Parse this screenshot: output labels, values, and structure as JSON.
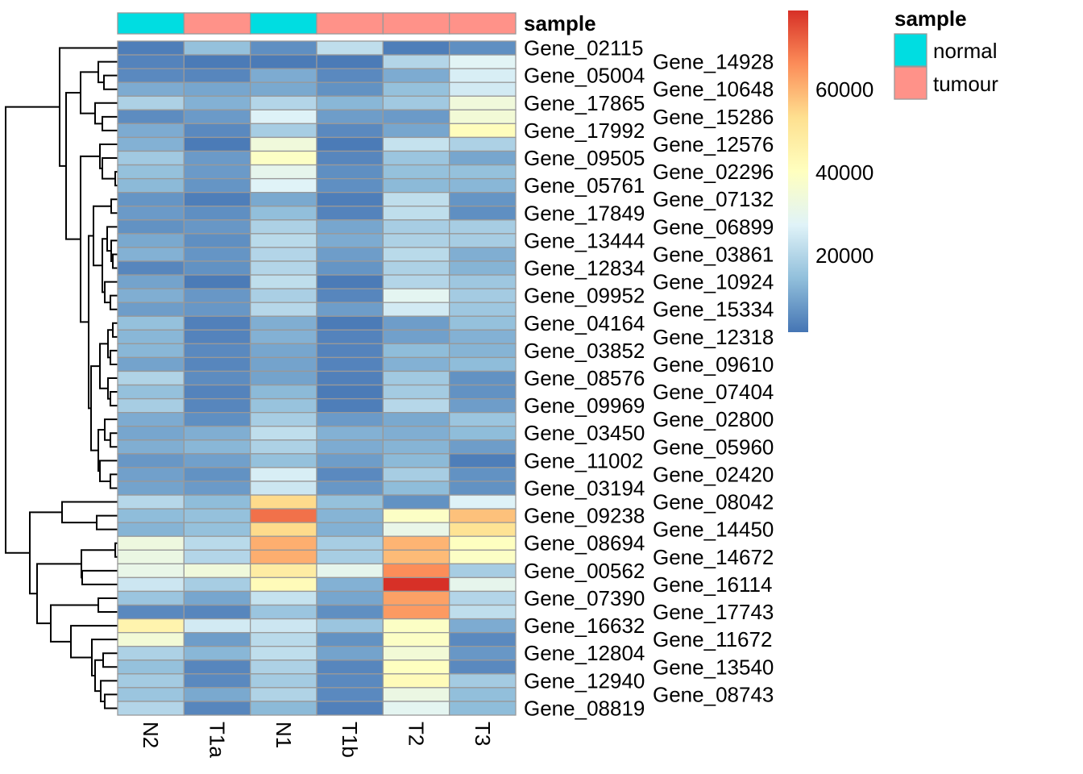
{
  "chart_data": {
    "type": "heatmap",
    "columns": [
      "N2",
      "T1a",
      "N1",
      "T1b",
      "T2",
      "T3"
    ],
    "rows": [
      "Gene_02115",
      "Gene_14928",
      "Gene_05004",
      "Gene_10648",
      "Gene_17865",
      "Gene_15286",
      "Gene_17992",
      "Gene_12576",
      "Gene_09505",
      "Gene_02296",
      "Gene_05761",
      "Gene_07132",
      "Gene_17849",
      "Gene_06899",
      "Gene_13444",
      "Gene_03861",
      "Gene_12834",
      "Gene_10924",
      "Gene_09952",
      "Gene_15334",
      "Gene_04164",
      "Gene_12318",
      "Gene_03852",
      "Gene_09610",
      "Gene_08576",
      "Gene_07404",
      "Gene_09969",
      "Gene_02800",
      "Gene_03450",
      "Gene_05960",
      "Gene_11002",
      "Gene_02420",
      "Gene_03194",
      "Gene_08042",
      "Gene_09238",
      "Gene_14450",
      "Gene_08694",
      "Gene_14672",
      "Gene_00562",
      "Gene_16114",
      "Gene_07390",
      "Gene_17743",
      "Gene_16632",
      "Gene_11672",
      "Gene_12804",
      "Gene_13540",
      "Gene_12940",
      "Gene_08743",
      "Gene_08819"
    ],
    "values": [
      [
        3000,
        15000,
        6000,
        22000,
        3000,
        6000
      ],
      [
        4000,
        2500,
        2500,
        2500,
        20000,
        28000
      ],
      [
        5000,
        4500,
        11000,
        5000,
        11000,
        26000
      ],
      [
        11000,
        10000,
        10500,
        6500,
        15000,
        25000
      ],
      [
        19000,
        12000,
        20000,
        13000,
        17000,
        34000
      ],
      [
        5500,
        8000,
        27000,
        8500,
        8000,
        35000
      ],
      [
        11000,
        5000,
        18000,
        5000,
        10000,
        41000
      ],
      [
        12000,
        2500,
        34000,
        2500,
        23000,
        19000
      ],
      [
        17000,
        8000,
        39000,
        4500,
        16000,
        10000
      ],
      [
        15000,
        8000,
        30000,
        6000,
        15000,
        15000
      ],
      [
        13500,
        7000,
        27500,
        6000,
        13500,
        13000
      ],
      [
        7000,
        3000,
        10500,
        3000,
        22000,
        7000
      ],
      [
        8000,
        6000,
        14500,
        4000,
        22000,
        6000
      ],
      [
        6500,
        7500,
        19000,
        10000,
        18000,
        18000
      ],
      [
        10500,
        6000,
        21000,
        11000,
        19000,
        18000
      ],
      [
        12000,
        7000,
        20000,
        8500,
        21000,
        11500
      ],
      [
        4500,
        6500,
        20000,
        7000,
        19000,
        12500
      ],
      [
        9500,
        2500,
        22000,
        2500,
        20000,
        16500
      ],
      [
        11500,
        7500,
        18500,
        4500,
        29000,
        17500
      ],
      [
        8500,
        7500,
        20500,
        8500,
        25000,
        16500
      ],
      [
        15000,
        3500,
        11500,
        2500,
        8500,
        15000
      ],
      [
        13000,
        4000,
        12000,
        4000,
        9000,
        12000
      ],
      [
        13000,
        5000,
        10000,
        4000,
        14000,
        12500
      ],
      [
        9500,
        4500,
        9500,
        4000,
        12000,
        14000
      ],
      [
        19500,
        5500,
        9500,
        3500,
        17000,
        6500
      ],
      [
        15000,
        4000,
        13500,
        2500,
        17500,
        6500
      ],
      [
        18000,
        4500,
        15500,
        3000,
        20500,
        8500
      ],
      [
        11000,
        6000,
        18000,
        8000,
        10500,
        16000
      ],
      [
        10000,
        11500,
        22000,
        12000,
        11500,
        14000
      ],
      [
        11500,
        13000,
        19000,
        11000,
        12500,
        8500
      ],
      [
        7500,
        9000,
        15000,
        8500,
        13500,
        3000
      ],
      [
        9000,
        6500,
        26000,
        5000,
        18000,
        6500
      ],
      [
        9500,
        8000,
        24000,
        7500,
        14000,
        6500
      ],
      [
        20500,
        14000,
        54000,
        15000,
        6500,
        27000
      ],
      [
        14000,
        15000,
        70000,
        12500,
        39000,
        58000
      ],
      [
        12500,
        15000,
        54000,
        12000,
        31000,
        52000
      ],
      [
        33000,
        21000,
        61000,
        18000,
        60000,
        40000
      ],
      [
        32000,
        20000,
        61000,
        18000,
        59000,
        39000
      ],
      [
        31000,
        34000,
        48000,
        30000,
        66000,
        18000
      ],
      [
        24000,
        18000,
        42000,
        12000,
        79000,
        30000
      ],
      [
        16000,
        10000,
        23000,
        10000,
        63000,
        20000
      ],
      [
        5000,
        4500,
        16000,
        6000,
        64000,
        22000
      ],
      [
        45000,
        25000,
        24000,
        16000,
        39000,
        11000
      ],
      [
        35000,
        8500,
        21000,
        6500,
        39000,
        5000
      ],
      [
        19000,
        13000,
        22000,
        9500,
        35000,
        7500
      ],
      [
        15000,
        4500,
        19000,
        4500,
        40000,
        5000
      ],
      [
        17500,
        5000,
        17500,
        5000,
        42000,
        17500
      ],
      [
        16000,
        10500,
        19500,
        5000,
        32000,
        14500
      ],
      [
        20000,
        4500,
        13500,
        3500,
        29000,
        14000
      ]
    ],
    "color_scale": {
      "min": 1500,
      "max": 79000,
      "colors": [
        "#4575B4",
        "#91BFDB",
        "#E0F3F8",
        "#FFFFBF",
        "#FEE090",
        "#FC8D59",
        "#D73027"
      ],
      "ticks": [
        "20000",
        "40000",
        "60000"
      ]
    },
    "column_annotation": {
      "title": "sample",
      "values": [
        "normal",
        "tumour",
        "normal",
        "tumour",
        "tumour",
        "tumour"
      ],
      "legend_title": "sample",
      "legend": [
        {
          "label": "normal",
          "color": "#00DDE1"
        },
        {
          "label": "tumour",
          "color": "#FF9289"
        }
      ]
    },
    "cell_border_color": "#999999",
    "row_dendrogram": true
  }
}
